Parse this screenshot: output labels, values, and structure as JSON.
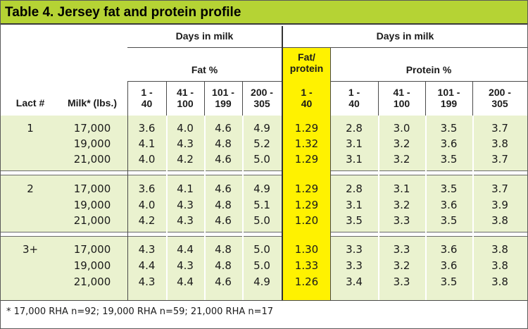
{
  "title": "Table 4. Jersey fat and protein profile",
  "header": {
    "days_in_milk_left": "Days in milk",
    "days_in_milk_right": "Days in milk",
    "fat_percent": "Fat %",
    "fat_protein": "Fat/\nprotein",
    "protein_percent": "Protein %",
    "lact": "Lact #",
    "milk": "Milk* (lbs.)",
    "fat_cols": [
      "1 -\n40",
      "41 -\n100",
      "101 -\n199",
      "200 -\n305"
    ],
    "fp_col": "1 -\n40",
    "protein_cols": [
      "1 -\n40",
      "41 -\n100",
      "101 -\n199",
      "200 -\n305"
    ]
  },
  "groups": [
    {
      "lact": "1",
      "rows": [
        {
          "milk": "17,000",
          "fat": [
            "3.6",
            "4.0",
            "4.6",
            "4.9"
          ],
          "fp": "1.29",
          "protein": [
            "2.8",
            "3.0",
            "3.5",
            "3.7"
          ]
        },
        {
          "milk": "19,000",
          "fat": [
            "4.1",
            "4.3",
            "4.8",
            "5.2"
          ],
          "fp": "1.32",
          "protein": [
            "3.1",
            "3.2",
            "3.6",
            "3.8"
          ]
        },
        {
          "milk": "21,000",
          "fat": [
            "4.0",
            "4.2",
            "4.6",
            "5.0"
          ],
          "fp": "1.29",
          "protein": [
            "3.1",
            "3.2",
            "3.5",
            "3.7"
          ]
        }
      ]
    },
    {
      "lact": "2",
      "rows": [
        {
          "milk": "17,000",
          "fat": [
            "3.6",
            "4.1",
            "4.6",
            "4.9"
          ],
          "fp": "1.29",
          "protein": [
            "2.8",
            "3.1",
            "3.5",
            "3.7"
          ]
        },
        {
          "milk": "19,000",
          "fat": [
            "4.0",
            "4.3",
            "4.8",
            "5.1"
          ],
          "fp": "1.29",
          "protein": [
            "3.1",
            "3.2",
            "3.6",
            "3.9"
          ]
        },
        {
          "milk": "21,000",
          "fat": [
            "4.2",
            "4.3",
            "4.6",
            "5.0"
          ],
          "fp": "1.20",
          "protein": [
            "3.5",
            "3.3",
            "3.5",
            "3.8"
          ]
        }
      ]
    },
    {
      "lact": "3+",
      "rows": [
        {
          "milk": "17,000",
          "fat": [
            "4.3",
            "4.4",
            "4.8",
            "5.0"
          ],
          "fp": "1.30",
          "protein": [
            "3.3",
            "3.3",
            "3.6",
            "3.8"
          ]
        },
        {
          "milk": "19,000",
          "fat": [
            "4.4",
            "4.3",
            "4.8",
            "5.0"
          ],
          "fp": "1.33",
          "protein": [
            "3.3",
            "3.2",
            "3.6",
            "3.8"
          ]
        },
        {
          "milk": "21,000",
          "fat": [
            "4.3",
            "4.4",
            "4.6",
            "4.9"
          ],
          "fp": "1.26",
          "protein": [
            "3.4",
            "3.3",
            "3.5",
            "3.8"
          ]
        }
      ]
    }
  ],
  "footnote": "* 17,000 RHA n=92; 19,000 RHA n=59; 21,000 RHA n=17"
}
